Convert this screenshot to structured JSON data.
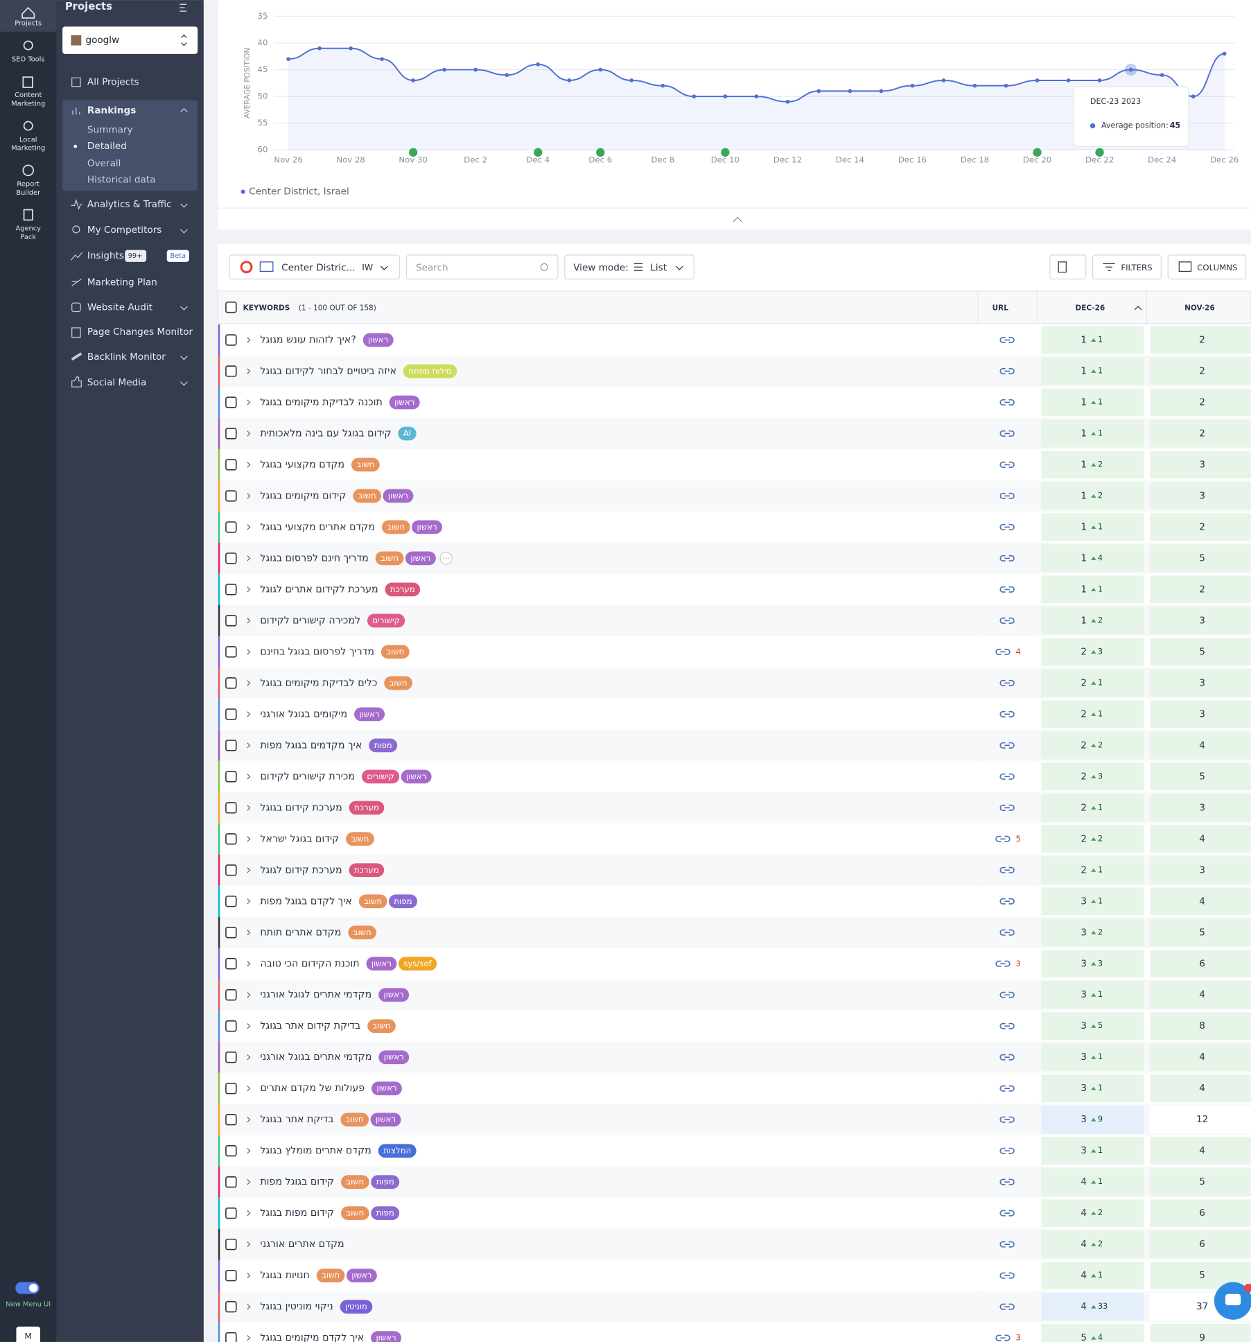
{
  "rail": {
    "items": [
      {
        "lines": [
          "Projects"
        ]
      },
      {
        "lines": [
          "SEO Tools"
        ]
      },
      {
        "lines": [
          "Content",
          "Marketing"
        ]
      },
      {
        "lines": [
          "Local",
          "Marketing"
        ]
      },
      {
        "lines": [
          "Report",
          "Builder"
        ]
      },
      {
        "lines": [
          "Agency",
          "Pack"
        ]
      }
    ],
    "toggle": "New Menu UI",
    "avatar": "M"
  },
  "sidebar": {
    "title": "Projects",
    "project": "googlw",
    "all": "All Projects",
    "rankings": "Rankings",
    "sub": [
      "Summary",
      "Detailed",
      "Overall",
      "Historical data"
    ],
    "nav": [
      "Analytics & Traffic",
      "My Competitors",
      "Insights",
      "Marketing Plan",
      "Website Audit",
      "Page Changes Monitor",
      "Backlink Monitor",
      "Social Media"
    ],
    "insights_count": "99+",
    "insights_badge": "Beta"
  },
  "chart_data": {
    "type": "line",
    "y_label": "AVERAGE POSITION",
    "categories": [
      "Nov 26",
      null,
      "Nov 28",
      null,
      "Nov 30",
      null,
      "Dec 2",
      null,
      "Dec 4",
      null,
      "Dec 6",
      null,
      "Dec 8",
      null,
      "Dec 10",
      null,
      "Dec 12",
      null,
      "Dec 14",
      null,
      "Dec 16",
      null,
      "Dec 18",
      null,
      "Dec 20",
      null,
      "Dec 22",
      null,
      "Dec 24",
      null,
      "Dec 26"
    ],
    "series": [
      {
        "name": "Center District, Israel",
        "color": "#4f6fd3",
        "values": [
          43,
          41,
          41,
          43,
          47,
          45,
          45,
          46,
          44,
          47,
          45,
          47,
          48,
          50,
          50,
          50,
          51,
          49,
          49,
          49,
          48,
          47,
          48,
          48,
          47,
          47,
          47,
          45,
          46,
          50,
          42
        ]
      }
    ],
    "ylim": [
      60,
      35
    ],
    "yticks": [
      35,
      40,
      45,
      50,
      55,
      60
    ],
    "grid": true,
    "tooltip": {
      "date": "DEC-23 2023",
      "label": "Average position:"
    }
  },
  "toolbar": {
    "location": "Center Distric...",
    "lang": "IW",
    "search": "Search",
    "view_label": "View mode:",
    "view": "List",
    "filters": "FILTERS",
    "columns": "COLUMNS"
  },
  "table": {
    "columns": {
      "keywords": "KEYWORDS",
      "count": "(1 - 100 OUT OF 158)",
      "url": "URL",
      "dec": "DEC-26",
      "nov": "NOV-26"
    },
    "cell_color": "#e7f5e9",
    "rows": [
      {
        "keyword": "איך לזהות עונש מגוגל?",
        "tags": [
          {
            "text": "ראשון",
            "color": "#a56bcc"
          }
        ],
        "dec": 1,
        "dec_change": 1,
        "nov": 2
      },
      {
        "keyword": "איזה ביטויים לבחור לקידום בגוגל",
        "tags": [
          {
            "text": "מילות מפתח",
            "color": "#cddc5a"
          }
        ],
        "dec": 1,
        "dec_change": 1,
        "nov": 2
      },
      {
        "keyword": "תוכנה לבדיקת מיקומים בגוגל",
        "tags": [
          {
            "text": "ראשון",
            "color": "#a56bcc"
          }
        ],
        "dec": 1,
        "dec_change": 1,
        "nov": 2
      },
      {
        "keyword": "קידום בגוגל עם בינה מלאכותית",
        "tags": [
          {
            "text": "AI",
            "color": "#5cb6d4"
          }
        ],
        "dec": 1,
        "dec_change": 1,
        "nov": 2
      },
      {
        "keyword": "מקדם מקצועי בגוגל",
        "tags": [
          {
            "text": "חשוב",
            "color": "#e8925c"
          }
        ],
        "dec": 1,
        "dec_change": 2,
        "nov": 3
      },
      {
        "keyword": "קידום מיקומים בגוגל",
        "tags": [
          {
            "text": "חשוב",
            "color": "#e8925c"
          },
          {
            "text": "ראשון",
            "color": "#a56bcc"
          }
        ],
        "dec": 1,
        "dec_change": 2,
        "nov": 3
      },
      {
        "keyword": "מקדם אתרים מקצועי בגוגל",
        "tags": [
          {
            "text": "חשוב",
            "color": "#e8925c"
          },
          {
            "text": "ראשון",
            "color": "#a56bcc"
          }
        ],
        "dec": 1,
        "dec_change": 1,
        "nov": 2
      },
      {
        "keyword": "מדריך חינם לפרסום בגוגל",
        "tags": [
          {
            "text": "חשוב",
            "color": "#e8925c"
          },
          {
            "text": "ראשון",
            "color": "#a56bcc"
          }
        ],
        "more": true,
        "dec": 1,
        "dec_change": 4,
        "nov": 5
      },
      {
        "keyword": "מערכת לקידום אתרים לגוגל",
        "tags": [
          {
            "text": "מערכת",
            "color": "#d9587c"
          }
        ],
        "dec": 1,
        "dec_change": 1,
        "nov": 2
      },
      {
        "keyword": "למכירה קישורים לקידום",
        "tags": [
          {
            "text": "קישורים",
            "color": "#e05b8b"
          }
        ],
        "dec": 1,
        "dec_change": 2,
        "nov": 3
      },
      {
        "keyword": "מדריך לפרסום בגוגל בחינם",
        "tags": [
          {
            "text": "חשוב",
            "color": "#e8925c"
          }
        ],
        "url_count": 4,
        "dec": 2,
        "dec_change": 3,
        "nov": 5
      },
      {
        "keyword": "כלים לבדיקת מיקומים בגוגל",
        "tags": [
          {
            "text": "חשוב",
            "color": "#e8925c"
          }
        ],
        "dec": 2,
        "dec_change": 1,
        "nov": 3
      },
      {
        "keyword": "מיקומים בגוגל אורגני",
        "tags": [
          {
            "text": "ראשון",
            "color": "#a56bcc"
          }
        ],
        "dec": 2,
        "dec_change": 1,
        "nov": 3
      },
      {
        "keyword": "איך מקדמים בגוגל מפות",
        "tags": [
          {
            "text": "מפות",
            "color": "#8c6bd1"
          }
        ],
        "dec": 2,
        "dec_change": 2,
        "nov": 4
      },
      {
        "keyword": "מכירת קישורים לקידום",
        "tags": [
          {
            "text": "קישורים",
            "color": "#e05b8b"
          },
          {
            "text": "ראשון",
            "color": "#a56bcc"
          }
        ],
        "dec": 2,
        "dec_change": 3,
        "nov": 5
      },
      {
        "keyword": "מערכת קידום בגוגל",
        "tags": [
          {
            "text": "מערכת",
            "color": "#d9587c"
          }
        ],
        "dec": 2,
        "dec_change": 1,
        "nov": 3
      },
      {
        "keyword": "קידום בגוגל ישראל",
        "tags": [
          {
            "text": "חשוב",
            "color": "#e8925c"
          }
        ],
        "url_count": 5,
        "dec": 2,
        "dec_change": 2,
        "nov": 4
      },
      {
        "keyword": "מערכת קידום לגוגל",
        "tags": [
          {
            "text": "מערכת",
            "color": "#d9587c"
          }
        ],
        "dec": 2,
        "dec_change": 1,
        "nov": 3
      },
      {
        "keyword": "איך לקדם בגוגל מפות",
        "tags": [
          {
            "text": "חשוב",
            "color": "#e8925c"
          },
          {
            "text": "מפות",
            "color": "#8c6bd1"
          }
        ],
        "dec": 3,
        "dec_change": 1,
        "nov": 4
      },
      {
        "keyword": "מקדם אתרים תותח",
        "tags": [
          {
            "text": "חשוב",
            "color": "#e8925c"
          }
        ],
        "dec": 3,
        "dec_change": 2,
        "nov": 5
      },
      {
        "keyword": "תוכנת הקידום הכי טובה",
        "tags": [
          {
            "text": "ראשון",
            "color": "#a56bcc"
          },
          {
            "text": "sys/sof",
            "color": "#f0a722"
          }
        ],
        "url_count": 3,
        "dec": 3,
        "dec_change": 3,
        "nov": 6
      },
      {
        "keyword": "מקדמי אתרים לגוגל אורגני",
        "tags": [
          {
            "text": "ראשון",
            "color": "#a56bcc"
          }
        ],
        "dec": 3,
        "dec_change": 1,
        "nov": 4
      },
      {
        "keyword": "בדיקת קידום אתר בגוגל",
        "tags": [
          {
            "text": "חשוב",
            "color": "#e8925c"
          }
        ],
        "dec": 3,
        "dec_change": 5,
        "nov": 8
      },
      {
        "keyword": "מקדמי אתרים בגוגל אורגני",
        "tags": [
          {
            "text": "ראשון",
            "color": "#a56bcc"
          }
        ],
        "dec": 3,
        "dec_change": 1,
        "nov": 4
      },
      {
        "keyword": "פעולות של מקדם אתרים",
        "tags": [
          {
            "text": "ראשון",
            "color": "#a56bcc"
          }
        ],
        "dec": 3,
        "dec_change": 1,
        "nov": 4
      },
      {
        "keyword": "בדיקת אתר בגוגל",
        "tags": [
          {
            "text": "חשוב",
            "color": "#e8925c"
          },
          {
            "text": "ראשון",
            "color": "#a56bcc"
          }
        ],
        "dec": 3,
        "dec_change": 9,
        "nov": 12,
        "dec_bg": "#e4effb",
        "nov_bg": "#ffffff"
      },
      {
        "keyword": "מקדם אתרים מומלץ בגוגל",
        "tags": [
          {
            "text": "המלצות",
            "color": "#4a6fd8"
          }
        ],
        "dec": 3,
        "dec_change": 1,
        "nov": 4
      },
      {
        "keyword": "קידום בגוגל מפות",
        "tags": [
          {
            "text": "חשוב",
            "color": "#e8925c"
          },
          {
            "text": "מפות",
            "color": "#8c6bd1"
          }
        ],
        "dec": 4,
        "dec_change": 1,
        "nov": 5
      },
      {
        "keyword": "קידום מפות בגוגל",
        "tags": [
          {
            "text": "חשוב",
            "color": "#e8925c"
          },
          {
            "text": "מפות",
            "color": "#8c6bd1"
          }
        ],
        "dec": 4,
        "dec_change": 2,
        "nov": 6
      },
      {
        "keyword": "מקדם אתרים אורגני",
        "tags": [],
        "dec": 4,
        "dec_change": 2,
        "nov": 6
      },
      {
        "keyword": "חנויות בגוגל",
        "tags": [
          {
            "text": "חשוב",
            "color": "#e8925c"
          },
          {
            "text": "ראשון",
            "color": "#a56bcc"
          }
        ],
        "dec": 4,
        "dec_change": 1,
        "nov": 5
      },
      {
        "keyword": "ניקוי מוניטין בגוגל",
        "tags": [
          {
            "text": "מוניטין",
            "color": "#7a61d9"
          }
        ],
        "dec": 4,
        "dec_change": 33,
        "nov": 37,
        "dec_bg": "#e4effb",
        "nov_bg": "#ffffff"
      },
      {
        "keyword": "איך לקדם מיקומים בגוגל",
        "tags": [
          {
            "text": "ראשון",
            "color": "#a56bcc"
          }
        ],
        "url_count": 3,
        "dec": 5,
        "dec_change": 4,
        "nov": 9
      }
    ]
  }
}
